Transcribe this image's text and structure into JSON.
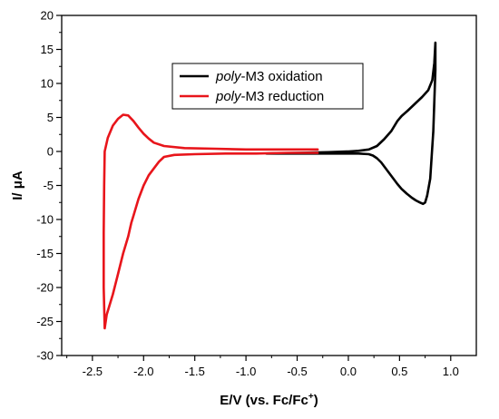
{
  "chart_data": {
    "type": "line",
    "xlabel": "E/V (vs. Fc/Fc",
    "xlabel_sup": "+",
    "xlabel_end": ")",
    "ylabel": "I/ μA",
    "xlim": [
      -2.8,
      1.25
    ],
    "ylim": [
      -30,
      20
    ],
    "xticks": [
      -2.5,
      -2.0,
      -1.5,
      -1.0,
      -0.5,
      0.0,
      0.5,
      1.0
    ],
    "xtick_labels": [
      "-2.5",
      "-2.0",
      "-1.5",
      "-1.0",
      "-0.5",
      "0.0",
      "0.5",
      "1.0"
    ],
    "yticks": [
      -30,
      -25,
      -20,
      -15,
      -10,
      -5,
      0,
      5,
      10,
      15,
      20
    ],
    "ytick_labels": [
      "-30",
      "-25",
      "-20",
      "-15",
      "-10",
      "-5",
      "0",
      "5",
      "10",
      "15",
      "20"
    ],
    "legend": {
      "placement": "top-center",
      "entries": [
        {
          "prefix": "poly",
          "suffix": "-M3 oxidation",
          "color": "#000000"
        },
        {
          "prefix": "poly",
          "suffix": "-M3 reduction",
          "color": "#e8151b"
        }
      ]
    },
    "series": [
      {
        "name": "poly-M3 oxidation",
        "color": "#000000",
        "x": [
          -0.8,
          -0.5,
          -0.2,
          0.0,
          0.1,
          0.2,
          0.28,
          0.35,
          0.42,
          0.48,
          0.52,
          0.58,
          0.65,
          0.72,
          0.78,
          0.82,
          0.84,
          0.85,
          0.85,
          0.83,
          0.8,
          0.77,
          0.75,
          0.73,
          0.7,
          0.66,
          0.62,
          0.57,
          0.52,
          0.48,
          0.44,
          0.4,
          0.36,
          0.32,
          0.28,
          0.24,
          0.2,
          0.1,
          0.0,
          -0.2,
          -0.5,
          -0.8
        ],
        "y": [
          -0.3,
          -0.2,
          -0.1,
          0.0,
          0.1,
          0.3,
          0.8,
          1.8,
          3.0,
          4.5,
          5.2,
          6.0,
          7.0,
          8.0,
          9.0,
          10.5,
          13.0,
          16.0,
          12.0,
          3.0,
          -4.0,
          -6.5,
          -7.5,
          -7.7,
          -7.5,
          -7.2,
          -6.8,
          -6.2,
          -5.5,
          -4.8,
          -4.0,
          -3.2,
          -2.4,
          -1.6,
          -1.0,
          -0.6,
          -0.4,
          -0.3,
          -0.3,
          -0.3,
          -0.3,
          -0.3
        ]
      },
      {
        "name": "poly-M3 reduction",
        "color": "#e8151b",
        "x": [
          -0.3,
          -0.6,
          -0.9,
          -1.2,
          -1.5,
          -1.7,
          -1.8,
          -1.85,
          -1.9,
          -1.95,
          -2.0,
          -2.05,
          -2.1,
          -2.12,
          -2.15,
          -2.2,
          -2.25,
          -2.3,
          -2.33,
          -2.36,
          -2.38,
          -2.39,
          -2.39,
          -2.385,
          -2.38,
          -2.35,
          -2.3,
          -2.25,
          -2.2,
          -2.15,
          -2.1,
          -2.05,
          -2.0,
          -1.95,
          -1.9,
          -1.8,
          -1.6,
          -1.3,
          -1.0,
          -0.7,
          -0.5,
          -0.3
        ],
        "y": [
          -0.2,
          -0.2,
          -0.3,
          -0.3,
          -0.4,
          -0.5,
          -0.8,
          -1.5,
          -2.5,
          -3.5,
          -5.0,
          -7.0,
          -9.5,
          -10.5,
          -12.5,
          -15.0,
          -18.0,
          -21.0,
          -22.5,
          -24.0,
          -26.0,
          -20.0,
          -12.0,
          -5.0,
          0.0,
          2.0,
          3.8,
          4.8,
          5.4,
          5.3,
          4.5,
          3.5,
          2.6,
          1.9,
          1.3,
          0.8,
          0.5,
          0.4,
          0.3,
          0.3,
          0.3,
          0.3
        ]
      }
    ]
  }
}
